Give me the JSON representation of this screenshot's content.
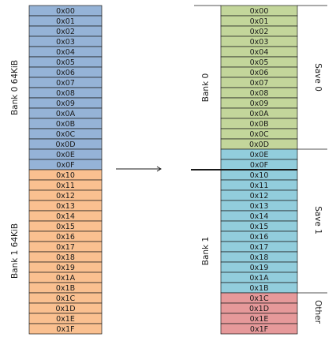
{
  "colors": {
    "bank0_left": "#95B3D7",
    "bank1_left": "#FAC090",
    "save0": "#C3D69B",
    "save1": "#92CDDC",
    "other": "#E6999A",
    "border": "#1a1a1a"
  },
  "left_labels": {
    "bank0": "Bank 0  64KiB",
    "bank1": "Bank 1  64KiB"
  },
  "right_labels": {
    "bank0": "Bank 0",
    "bank1": "Bank 1",
    "save0": "Save 0",
    "save1": "Save 1",
    "other": "Other"
  },
  "arrow": "→",
  "cells": [
    "0x00",
    "0x01",
    "0x02",
    "0x03",
    "0x04",
    "0x05",
    "0x06",
    "0x07",
    "0x08",
    "0x09",
    "0x0A",
    "0x0B",
    "0x0C",
    "0x0D",
    "0x0E",
    "0x0F",
    "0x10",
    "0x11",
    "0x12",
    "0x13",
    "0x14",
    "0x15",
    "0x16",
    "0x17",
    "0x18",
    "0x19",
    "0x1A",
    "0x1B",
    "0x1C",
    "0x1D",
    "0x1E",
    "0x1F"
  ],
  "left_groups": [
    "bank0_left",
    "bank0_left",
    "bank0_left",
    "bank0_left",
    "bank0_left",
    "bank0_left",
    "bank0_left",
    "bank0_left",
    "bank0_left",
    "bank0_left",
    "bank0_left",
    "bank0_left",
    "bank0_left",
    "bank0_left",
    "bank0_left",
    "bank0_left",
    "bank1_left",
    "bank1_left",
    "bank1_left",
    "bank1_left",
    "bank1_left",
    "bank1_left",
    "bank1_left",
    "bank1_left",
    "bank1_left",
    "bank1_left",
    "bank1_left",
    "bank1_left",
    "bank1_left",
    "bank1_left",
    "bank1_left",
    "bank1_left"
  ],
  "right_groups": [
    "save0",
    "save0",
    "save0",
    "save0",
    "save0",
    "save0",
    "save0",
    "save0",
    "save0",
    "save0",
    "save0",
    "save0",
    "save0",
    "save0",
    "save1",
    "save1",
    "save1",
    "save1",
    "save1",
    "save1",
    "save1",
    "save1",
    "save1",
    "save1",
    "save1",
    "save1",
    "save1",
    "save1",
    "other",
    "other",
    "other",
    "other"
  ]
}
